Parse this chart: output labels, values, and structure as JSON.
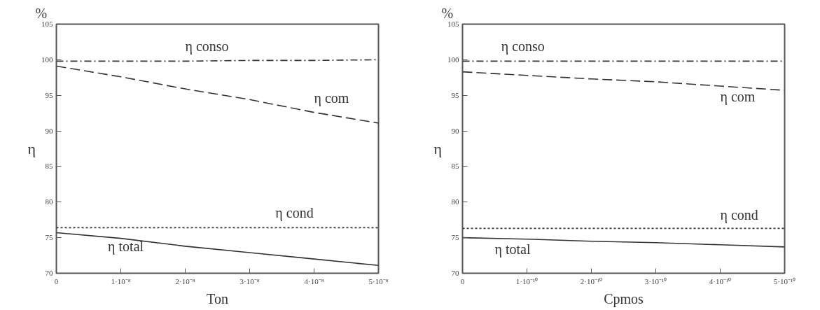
{
  "chart_data": [
    {
      "type": "line",
      "xlabel": "Ton",
      "ylabel": "η",
      "annotations": [
        "%"
      ],
      "x": [
        0,
        1e-08,
        2e-08,
        3e-08,
        4e-08,
        5e-08
      ],
      "xlim": [
        0,
        5e-08
      ],
      "xticks": [
        0,
        {
          "value": 1e-08,
          "label": "1·10⁻⁸"
        },
        {
          "value": 2e-08,
          "label": "2·10⁻⁸"
        },
        {
          "value": 3e-08,
          "label": "3·10⁻⁸"
        },
        {
          "value": 4e-08,
          "label": "4·10⁻⁸"
        },
        {
          "value": 5e-08,
          "label": "5·10⁻⁸"
        }
      ],
      "ylim": [
        70,
        105
      ],
      "yticks": [
        70,
        75,
        80,
        85,
        90,
        95,
        100,
        105
      ],
      "grid": false,
      "marker": "none",
      "series": [
        {
          "name": "η conso",
          "color": "#333333",
          "line_style": "dashdot",
          "values": [
            99.8,
            99.8,
            99.8,
            99.9,
            99.9,
            100.0
          ]
        },
        {
          "name": "η com",
          "color": "#333333",
          "line_style": "dashed",
          "values": [
            99.1,
            97.6,
            95.9,
            94.4,
            92.6,
            91.1
          ]
        },
        {
          "name": "η cond",
          "color": "#333333",
          "line_style": "dotted",
          "values": [
            76.4,
            76.4,
            76.4,
            76.4,
            76.4,
            76.4
          ]
        },
        {
          "name": "η total",
          "color": "#333333",
          "line_style": "solid",
          "values": [
            75.7,
            74.9,
            73.8,
            72.9,
            72.0,
            71.1
          ]
        }
      ]
    },
    {
      "type": "line",
      "xlabel": "Cpmos",
      "ylabel": "η",
      "annotations": [
        "%"
      ],
      "x": [
        0,
        1e-10,
        2e-10,
        3e-10,
        4e-10,
        5e-10
      ],
      "xlim": [
        0,
        5e-10
      ],
      "xticks": [
        0,
        {
          "value": 1e-10,
          "label": "1·10⁻¹⁰"
        },
        {
          "value": 2e-10,
          "label": "2·10⁻¹⁰"
        },
        {
          "value": 3e-10,
          "label": "3·10⁻¹⁰"
        },
        {
          "value": 4e-10,
          "label": "4·10⁻¹⁰"
        },
        {
          "value": 5e-10,
          "label": "5·10⁻¹⁰"
        }
      ],
      "ylim": [
        70,
        105
      ],
      "yticks": [
        70,
        75,
        80,
        85,
        90,
        95,
        100,
        105
      ],
      "grid": false,
      "marker": "none",
      "series": [
        {
          "name": "η conso",
          "color": "#333333",
          "line_style": "dashdot",
          "values": [
            99.8,
            99.8,
            99.8,
            99.8,
            99.8,
            99.8
          ]
        },
        {
          "name": "η com",
          "color": "#333333",
          "line_style": "dashed",
          "values": [
            98.3,
            97.8,
            97.3,
            96.9,
            96.3,
            95.7
          ]
        },
        {
          "name": "η cond",
          "color": "#333333",
          "line_style": "dotted",
          "values": [
            76.3,
            76.3,
            76.3,
            76.3,
            76.3,
            76.3
          ]
        },
        {
          "name": "η total",
          "color": "#333333",
          "line_style": "solid",
          "values": [
            75.0,
            74.8,
            74.5,
            74.3,
            74.0,
            73.7
          ]
        }
      ]
    }
  ]
}
